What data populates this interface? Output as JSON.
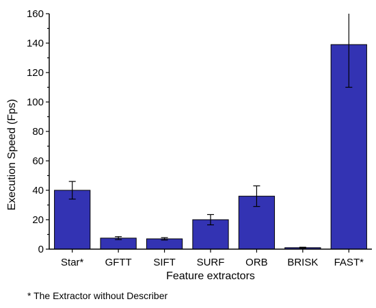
{
  "chart_data": {
    "type": "bar",
    "categories": [
      "Star*",
      "GFTT",
      "SIFT",
      "SURF",
      "ORB",
      "BRISK",
      "FAST*"
    ],
    "values": [
      40,
      7.5,
      7,
      20,
      36,
      1,
      139
    ],
    "error": [
      6,
      1,
      0.8,
      3.5,
      7,
      0.3,
      29
    ],
    "ylabel": "Execution Speed (Fps)",
    "xlabel": "Feature extractors",
    "ylim": [
      0,
      160
    ],
    "yticks": [
      0,
      20,
      40,
      60,
      80,
      100,
      120,
      140,
      160
    ],
    "bar_color": "#3333b3",
    "footnote": "* The Extractor without Describer"
  }
}
